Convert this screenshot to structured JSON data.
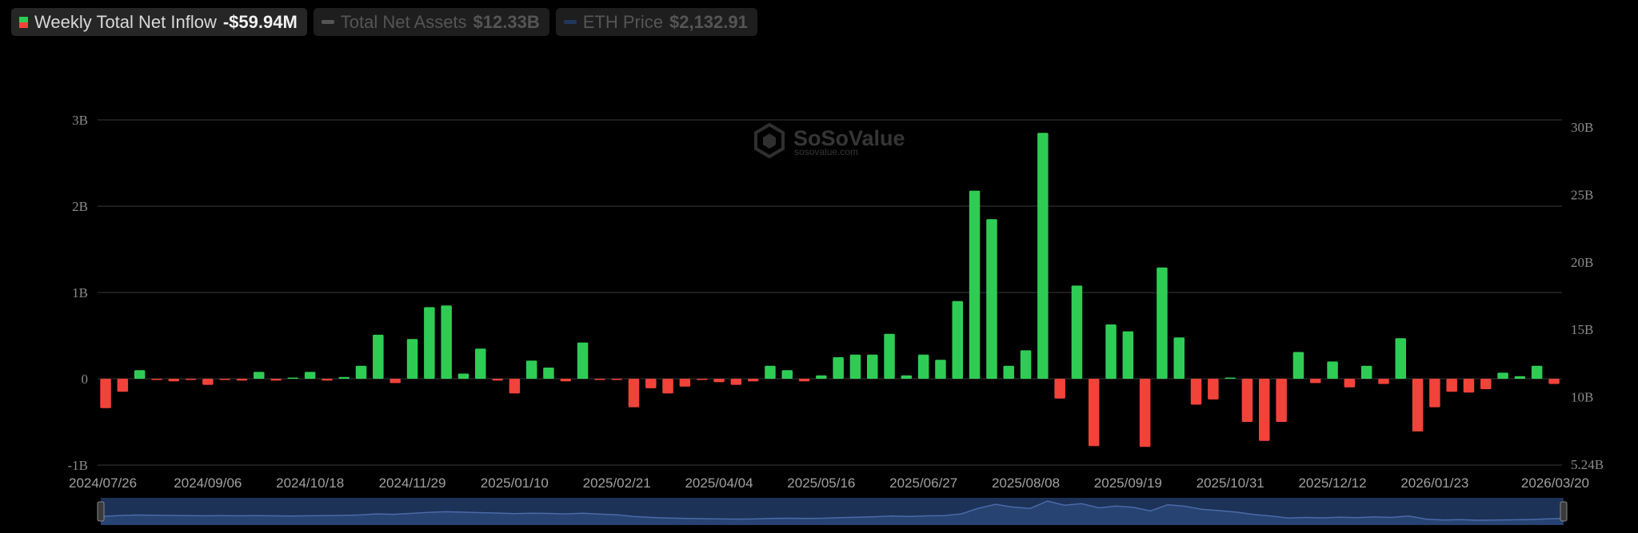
{
  "legend": {
    "inflow_label": "Weekly Total Net Inflow",
    "inflow_value": "-$59.94M",
    "assets_label": "Total Net Assets",
    "assets_value": "$12.33B",
    "price_label": "ETH Price",
    "price_value": "$2,132.91"
  },
  "watermark": {
    "brand": "SoSoValue",
    "url": "sosovalue.com"
  },
  "colors": {
    "positive": "#2fcc55",
    "negative": "#f2433a",
    "navigator": "#1d3257",
    "navigator_line": "#4a6aa8"
  },
  "chart_data": {
    "type": "bar",
    "title": "Weekly Total Net Inflow",
    "left_axis": {
      "ticks": [
        "3B",
        "2B",
        "1B",
        "0",
        "-1B"
      ],
      "ylim": [
        -1,
        3
      ],
      "unit": "B"
    },
    "right_axis": {
      "ticks": [
        "30B",
        "25B",
        "20B",
        "15B",
        "10B",
        "5.24B"
      ]
    },
    "x_tick_labels": [
      "2024/07/26",
      "2024/09/06",
      "2024/10/18",
      "2024/11/29",
      "2025/01/10",
      "2025/02/21",
      "2025/04/04",
      "2025/05/16",
      "2025/06/27",
      "2025/08/08",
      "2025/09/19",
      "2025/10/31",
      "2025/12/12",
      "2026/01/23",
      "2026/03/20"
    ],
    "x_start": "2024/07/26",
    "x_end": "2026/03/20",
    "grid": true,
    "values": [
      -0.34,
      -0.15,
      0.1,
      -0.01,
      -0.03,
      -0.01,
      -0.07,
      -0.01,
      -0.02,
      0.08,
      -0.02,
      0.0,
      0.08,
      -0.02,
      0.02,
      0.15,
      0.51,
      -0.05,
      0.46,
      0.83,
      0.85,
      0.06,
      0.35,
      -0.02,
      -0.17,
      0.21,
      0.13,
      -0.03,
      0.42,
      -0.01,
      -0.01,
      -0.33,
      -0.11,
      -0.17,
      -0.09,
      -0.01,
      -0.04,
      -0.07,
      -0.03,
      0.15,
      0.1,
      -0.03,
      0.04,
      0.25,
      0.28,
      0.28,
      0.52,
      0.04,
      0.28,
      0.22,
      0.9,
      2.18,
      1.85,
      0.15,
      0.33,
      2.85,
      -0.23,
      1.08,
      -0.78,
      0.63,
      0.55,
      -0.79,
      1.29,
      0.48,
      -0.3,
      -0.24,
      0.01,
      -0.5,
      -0.72,
      -0.5,
      0.31,
      -0.05,
      0.2,
      -0.1,
      0.15,
      -0.06,
      0.47,
      -0.61,
      -0.33,
      -0.15,
      -0.16,
      -0.12,
      0.07,
      0.03,
      0.15,
      -0.06
    ],
    "navigator_values": [
      13.2,
      13.6,
      13.9,
      13.8,
      13.7,
      13.6,
      13.5,
      13.6,
      13.5,
      13.6,
      13.5,
      13.4,
      13.5,
      13.6,
      13.7,
      13.9,
      14.4,
      14.2,
      14.6,
      15.1,
      15.4,
      15.2,
      15.0,
      14.8,
      14.5,
      14.7,
      14.6,
      14.4,
      14.7,
      14.3,
      14.0,
      13.2,
      12.8,
      12.5,
      12.3,
      12.2,
      12.1,
      12.0,
      12.1,
      12.3,
      12.4,
      12.3,
      12.4,
      12.7,
      12.9,
      13.1,
      13.4,
      13.2,
      13.5,
      13.6,
      14.4,
      17.0,
      18.8,
      17.5,
      16.9,
      20.3,
      18.4,
      19.1,
      17.2,
      18.0,
      17.4,
      15.8,
      18.6,
      17.9,
      16.5,
      15.9,
      15.2,
      14.1,
      13.4,
      12.5,
      12.8,
      12.6,
      12.9,
      12.7,
      13.0,
      12.8,
      13.4,
      12.0,
      11.6,
      11.8,
      11.5,
      11.6,
      11.7,
      11.8,
      12.1,
      12.33
    ]
  }
}
